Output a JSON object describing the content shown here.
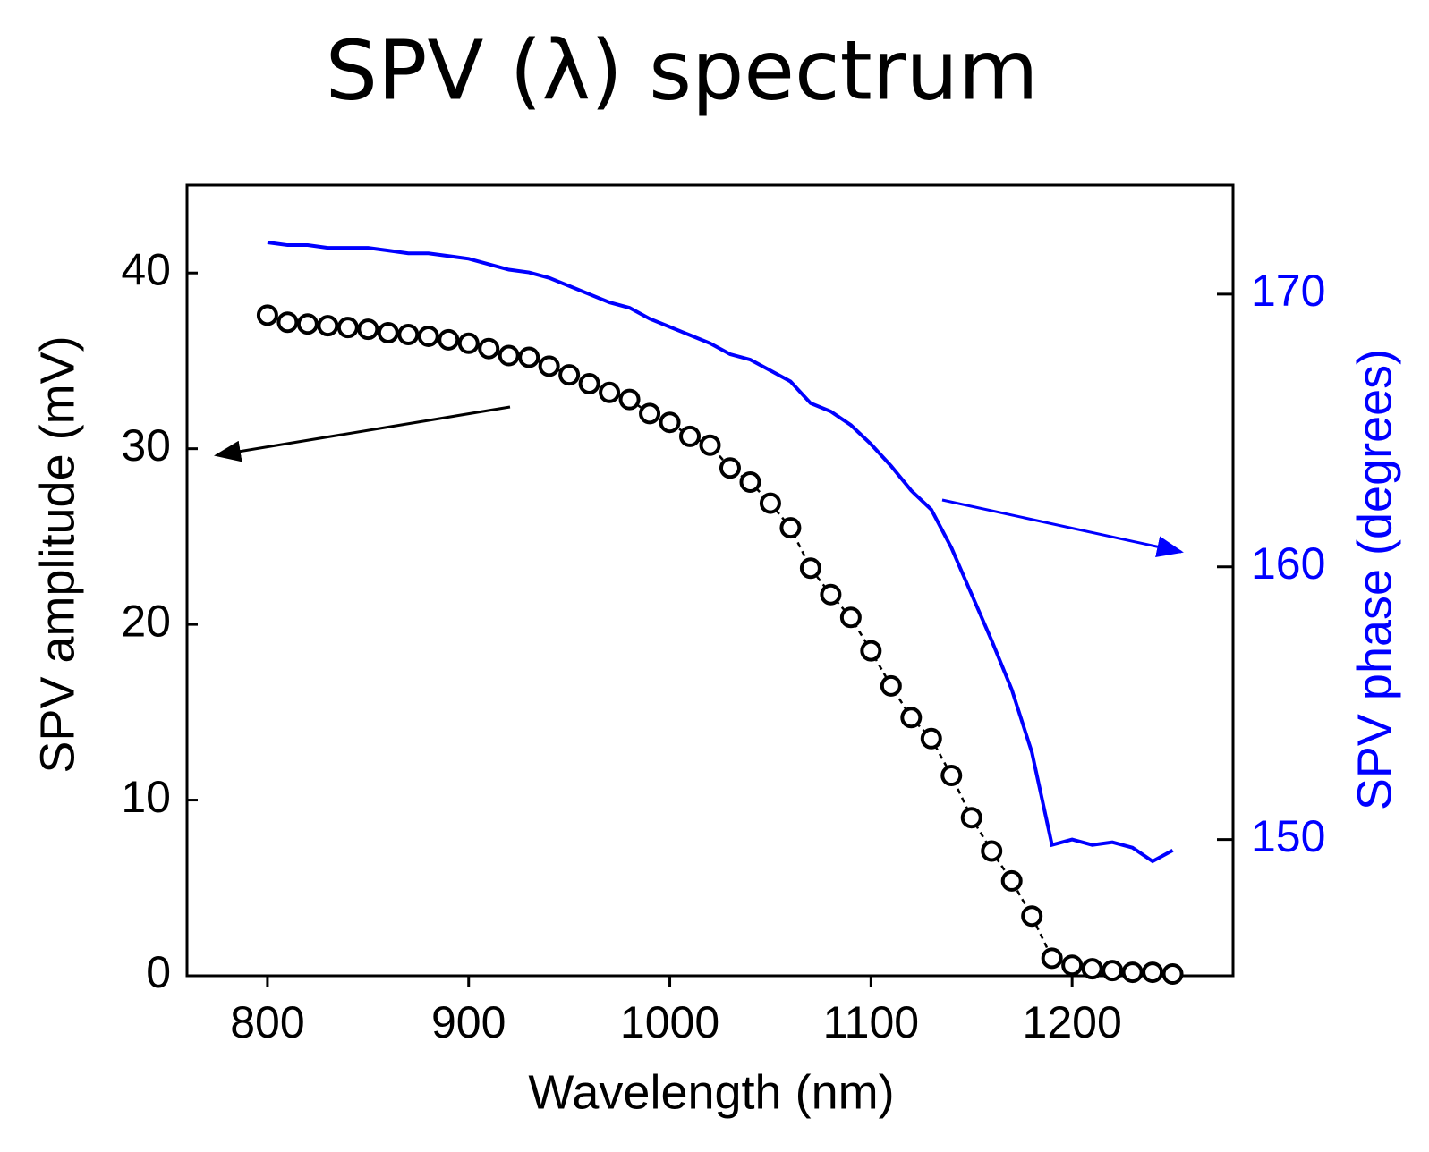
{
  "chart_data": {
    "type": "line",
    "title": "SPV (λ) spectrum",
    "x_label": "Wavelength (nm)",
    "y_label": "SPV amplitude (mV)",
    "y2_label": "SPV phase (degrees)",
    "x": [
      800,
      810,
      820,
      830,
      840,
      850,
      860,
      870,
      880,
      890,
      900,
      910,
      920,
      930,
      940,
      950,
      960,
      970,
      980,
      990,
      1000,
      1010,
      1020,
      1030,
      1040,
      1050,
      1060,
      1070,
      1080,
      1090,
      1100,
      1110,
      1120,
      1130,
      1140,
      1150,
      1160,
      1170,
      1180,
      1190,
      1200,
      1210,
      1220,
      1230,
      1240,
      1250
    ],
    "series": [
      {
        "color": "#000000",
        "mode": "markers+dashed-line",
        "axis": "y",
        "values": [
          37.6,
          37.2,
          37.1,
          37.0,
          36.9,
          36.8,
          36.6,
          36.5,
          36.4,
          36.2,
          36.0,
          35.7,
          35.3,
          35.2,
          34.7,
          34.2,
          33.7,
          33.2,
          32.8,
          32.0,
          31.5,
          30.7,
          30.2,
          28.9,
          28.1,
          26.9,
          25.5,
          23.2,
          21.7,
          20.4,
          18.5,
          16.5,
          14.7,
          13.5,
          11.4,
          9.0,
          7.1,
          5.4,
          3.4,
          1.0,
          0.6,
          0.4,
          0.3,
          0.2,
          0.2,
          0.1
        ]
      },
      {
        "color": "#0000ff",
        "mode": "line",
        "axis": "y2",
        "values": [
          171.9,
          171.8,
          171.8,
          171.7,
          171.7,
          171.7,
          171.6,
          171.5,
          171.5,
          171.4,
          171.3,
          171.1,
          170.9,
          170.8,
          170.6,
          170.3,
          170.0,
          169.7,
          169.5,
          169.1,
          168.8,
          168.5,
          168.2,
          167.8,
          167.6,
          167.2,
          166.8,
          166.0,
          165.7,
          165.2,
          164.5,
          163.7,
          162.8,
          162.1,
          160.7,
          159.0,
          157.3,
          155.5,
          153.2,
          149.8,
          150.0,
          149.8,
          149.9,
          149.7,
          149.2,
          149.6
        ]
      }
    ],
    "xlim": [
      760,
      1280
    ],
    "xticks": [
      800,
      900,
      1000,
      1100,
      1200
    ],
    "ylim": [
      0,
      45
    ],
    "yticks": [
      0,
      10,
      20,
      30,
      40
    ],
    "y2lim": [
      145,
      174
    ],
    "y2ticks": [
      150,
      160,
      170
    ],
    "y2color": "#0000ff"
  }
}
